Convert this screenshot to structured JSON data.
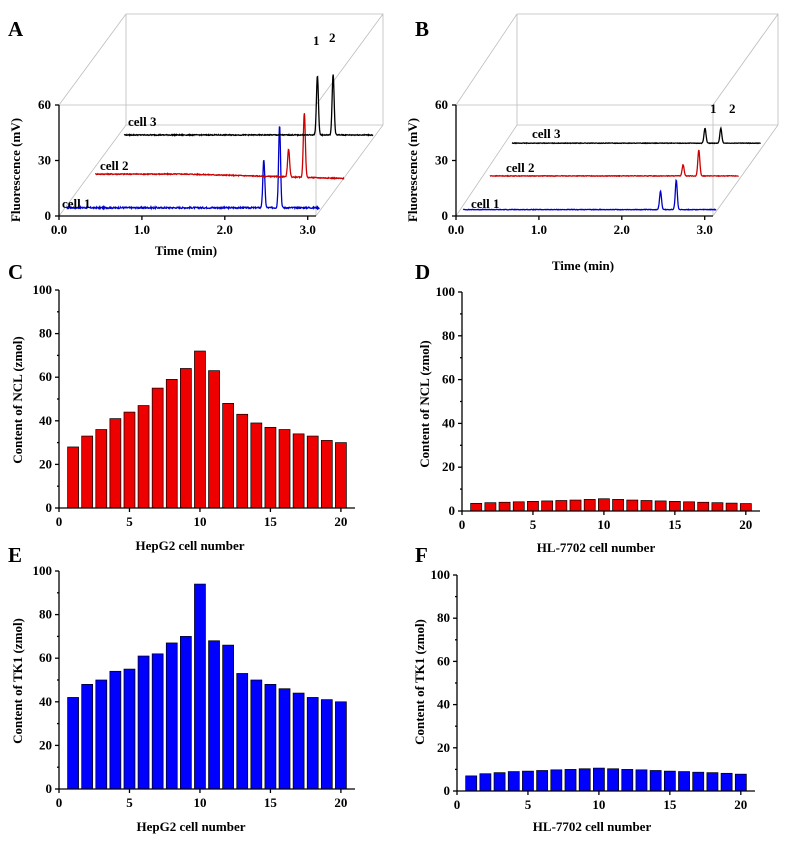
{
  "chart_data": [
    {
      "panel": "A",
      "type": "line",
      "view": "3d-waterfall",
      "xlabel": "Time (min)",
      "ylabel": "Fluorescence (mV)",
      "xticks": [
        "0.0",
        "1.0",
        "2.0",
        "3.0"
      ],
      "yticks": [
        "0",
        "30",
        "60"
      ],
      "xlim": [
        0,
        3.1
      ],
      "ylim": [
        0,
        60
      ],
      "peak_labels": [
        "1",
        "2"
      ],
      "series": [
        {
          "name": "cell 1",
          "color": "#0000cc",
          "baseline": 2,
          "noise": 0.4,
          "peaks": [
            {
              "t": 2.43,
              "h": 26,
              "w": 0.012
            },
            {
              "t": 2.62,
              "h": 45,
              "w": 0.012
            }
          ]
        },
        {
          "name": "cell 2",
          "color": "#cc0000",
          "baseline": 2,
          "noise": 0.25,
          "drift": -1.5,
          "peaks": [
            {
              "t": 2.43,
              "h": 15,
              "w": 0.012
            },
            {
              "t": 2.62,
              "h": 35,
              "w": 0.012
            }
          ]
        },
        {
          "name": "cell 3",
          "color": "#000000",
          "baseline": 2,
          "noise": 0.25,
          "peaks": [
            {
              "t": 2.43,
              "h": 32,
              "w": 0.012
            },
            {
              "t": 2.62,
              "h": 33,
              "w": 0.012
            }
          ]
        }
      ]
    },
    {
      "panel": "B",
      "type": "line",
      "view": "3d-waterfall",
      "xlabel": "Time (min)",
      "ylabel": "Fluorescence (mV)",
      "xticks": [
        "0.0",
        "1.0",
        "2.0",
        "3.0"
      ],
      "yticks": [
        "0",
        "30",
        "60"
      ],
      "xlim": [
        0,
        3.1
      ],
      "ylim": [
        0,
        60
      ],
      "peak_labels": [
        "1",
        "2"
      ],
      "series": [
        {
          "name": "cell 1",
          "color": "#0000cc",
          "baseline": 1,
          "noise": 0.15,
          "peaks": [
            {
              "t": 2.43,
              "h": 10,
              "w": 0.012
            },
            {
              "t": 2.62,
              "h": 16,
              "w": 0.012
            }
          ]
        },
        {
          "name": "cell 2",
          "color": "#cc0000",
          "baseline": 1,
          "noise": 0.15,
          "peaks": [
            {
              "t": 2.43,
              "h": 6,
              "w": 0.012
            },
            {
              "t": 2.62,
              "h": 14,
              "w": 0.012
            }
          ]
        },
        {
          "name": "cell 3",
          "color": "#000000",
          "baseline": 1,
          "noise": 0.15,
          "peaks": [
            {
              "t": 2.43,
              "h": 8,
              "w": 0.012
            },
            {
              "t": 2.62,
              "h": 8,
              "w": 0.012
            }
          ]
        }
      ]
    },
    {
      "panel": "C",
      "type": "bar",
      "xlabel": "HepG2 cell number",
      "ylabel": "Content of NCL (zmol)",
      "color": "#ee0000",
      "xticks": [
        "0",
        "5",
        "10",
        "15",
        "20"
      ],
      "yticks": [
        "0",
        "20",
        "40",
        "60",
        "80",
        "100"
      ],
      "xlim": [
        0,
        21
      ],
      "ylim": [
        0,
        100
      ],
      "x": [
        1,
        2,
        3,
        4,
        5,
        6,
        7,
        8,
        9,
        10,
        11,
        12,
        13,
        14,
        15,
        16,
        17,
        18,
        19,
        20
      ],
      "values": [
        28,
        33,
        36,
        41,
        44,
        47,
        55,
        59,
        64,
        72,
        63,
        48,
        43,
        39,
        37,
        36,
        34,
        33,
        31,
        30
      ]
    },
    {
      "panel": "D",
      "type": "bar",
      "xlabel": "HL-7702 cell number",
      "ylabel": "Content of NCL (zmol)",
      "color": "#ee0000",
      "xticks": [
        "0",
        "5",
        "10",
        "15",
        "20"
      ],
      "yticks": [
        "0",
        "20",
        "40",
        "60",
        "80",
        "100"
      ],
      "xlim": [
        0,
        21
      ],
      "ylim": [
        0,
        100
      ],
      "x": [
        1,
        2,
        3,
        4,
        5,
        6,
        7,
        8,
        9,
        10,
        11,
        12,
        13,
        14,
        15,
        16,
        17,
        18,
        19,
        20
      ],
      "values": [
        3.5,
        3.8,
        4.0,
        4.2,
        4.4,
        4.6,
        4.8,
        5.0,
        5.3,
        5.6,
        5.3,
        5.0,
        4.8,
        4.6,
        4.4,
        4.2,
        4.0,
        3.8,
        3.6,
        3.4
      ]
    },
    {
      "panel": "E",
      "type": "bar",
      "xlabel": "HepG2 cell number",
      "ylabel": "Content of TK1 (zmol)",
      "color": "#0000ff",
      "xticks": [
        "0",
        "5",
        "10",
        "15",
        "20"
      ],
      "yticks": [
        "0",
        "20",
        "40",
        "60",
        "80",
        "100"
      ],
      "xlim": [
        0,
        21
      ],
      "ylim": [
        0,
        100
      ],
      "x": [
        1,
        2,
        3,
        4,
        5,
        6,
        7,
        8,
        9,
        10,
        11,
        12,
        13,
        14,
        15,
        16,
        17,
        18,
        19,
        20
      ],
      "values": [
        42,
        48,
        50,
        54,
        55,
        61,
        62,
        67,
        70,
        94,
        68,
        66,
        53,
        50,
        48,
        46,
        44,
        42,
        41,
        40
      ]
    },
    {
      "panel": "F",
      "type": "bar",
      "xlabel": "HL-7702 cell number",
      "ylabel": "Content of TK1 (zmol)",
      "color": "#0000ff",
      "xticks": [
        "0",
        "5",
        "10",
        "15",
        "20"
      ],
      "yticks": [
        "0",
        "20",
        "40",
        "60",
        "80",
        "100"
      ],
      "xlim": [
        0,
        21
      ],
      "ylim": [
        0,
        100
      ],
      "x": [
        1,
        2,
        3,
        4,
        5,
        6,
        7,
        8,
        9,
        10,
        11,
        12,
        13,
        14,
        15,
        16,
        17,
        18,
        19,
        20
      ],
      "values": [
        7,
        8,
        8.5,
        9,
        9.2,
        9.5,
        9.8,
        10,
        10.3,
        10.6,
        10.3,
        10,
        9.8,
        9.5,
        9.2,
        9,
        8.7,
        8.5,
        8.2,
        7.8
      ]
    }
  ]
}
